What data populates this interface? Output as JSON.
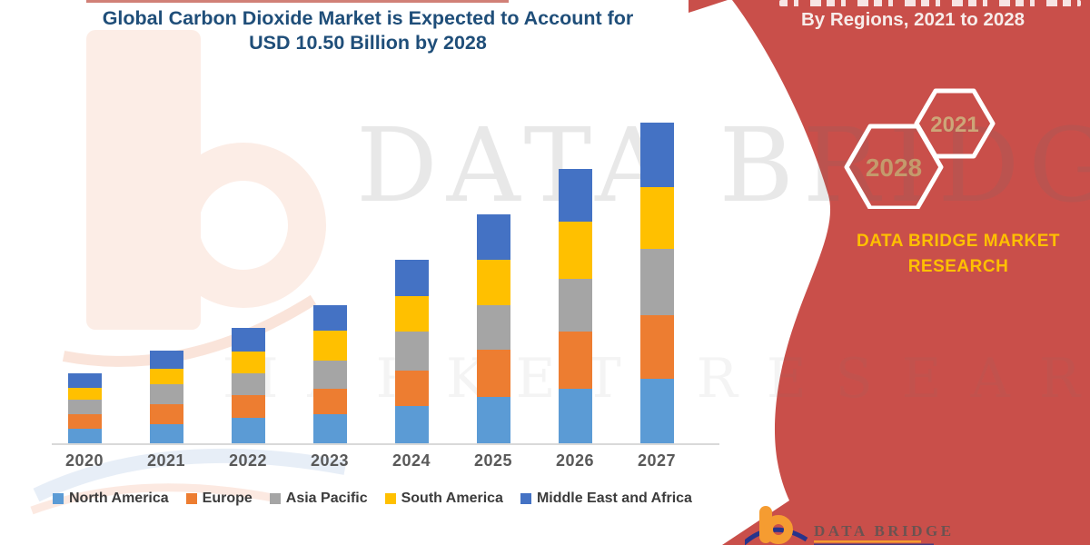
{
  "title": {
    "line1": "Global Carbon Dioxide Market is Expected to Account for",
    "line2": "USD 10.50 Billion by 2028"
  },
  "right_panel": {
    "heading": "By Regions, 2021 to 2028",
    "hexagons": [
      {
        "label": "2028"
      },
      {
        "label": "2021"
      }
    ],
    "brand": {
      "line1": "DATA BRIDGE MARKET",
      "line2": "RESEARCH"
    },
    "footer_logo": {
      "text": "DATA BRIDGE"
    }
  },
  "watermark": {
    "line1": "DATA BRIDGE",
    "line2": "MARKET RESEARCH"
  },
  "colors": {
    "red_panel": "#C94F4A",
    "title_text": "#1F4E79",
    "brand_yellow": "#FFC000",
    "hexagon_number": "#C49A6C",
    "axis_line": "#D9D9D9",
    "axis_label": "#595959",
    "logo_orange": "#F59C31",
    "logo_navy": "#27348B"
  },
  "chart_data": {
    "type": "bar",
    "stacked": true,
    "title": "Global Carbon Dioxide Market is Expected to Account for USD 10.50 Billion by 2028",
    "categories": [
      "2020",
      "2021",
      "2022",
      "2023",
      "2024",
      "2025",
      "2026",
      "2027"
    ],
    "series": [
      {
        "name": "North America",
        "color": "#5B9BD5",
        "values": [
          0.41,
          0.54,
          0.72,
          0.82,
          1.05,
          1.31,
          1.54,
          1.82
        ]
      },
      {
        "name": "Europe",
        "color": "#ED7D31",
        "values": [
          0.41,
          0.56,
          0.64,
          0.72,
          1.0,
          1.33,
          1.62,
          1.79
        ]
      },
      {
        "name": "Asia Pacific",
        "color": "#A5A5A5",
        "values": [
          0.41,
          0.56,
          0.62,
          0.79,
          1.1,
          1.26,
          1.49,
          1.87
        ]
      },
      {
        "name": "South America",
        "color": "#FFC000",
        "values": [
          0.33,
          0.44,
          0.62,
          0.85,
          1.0,
          1.28,
          1.62,
          1.74
        ]
      },
      {
        "name": "Middle East and Africa",
        "color": "#4472C4",
        "values": [
          0.41,
          0.51,
          0.67,
          0.72,
          1.03,
          1.28,
          1.49,
          1.82
        ]
      }
    ],
    "totals_estimated": [
      1.97,
      2.61,
      3.27,
      3.9,
      5.18,
      6.46,
      7.76,
      9.04
    ],
    "units": "USD Billion (estimated from bar heights; y-axis not labeled in source)",
    "xlabel": "",
    "ylabel": "",
    "gridlines": false,
    "legend_position": "bottom"
  }
}
